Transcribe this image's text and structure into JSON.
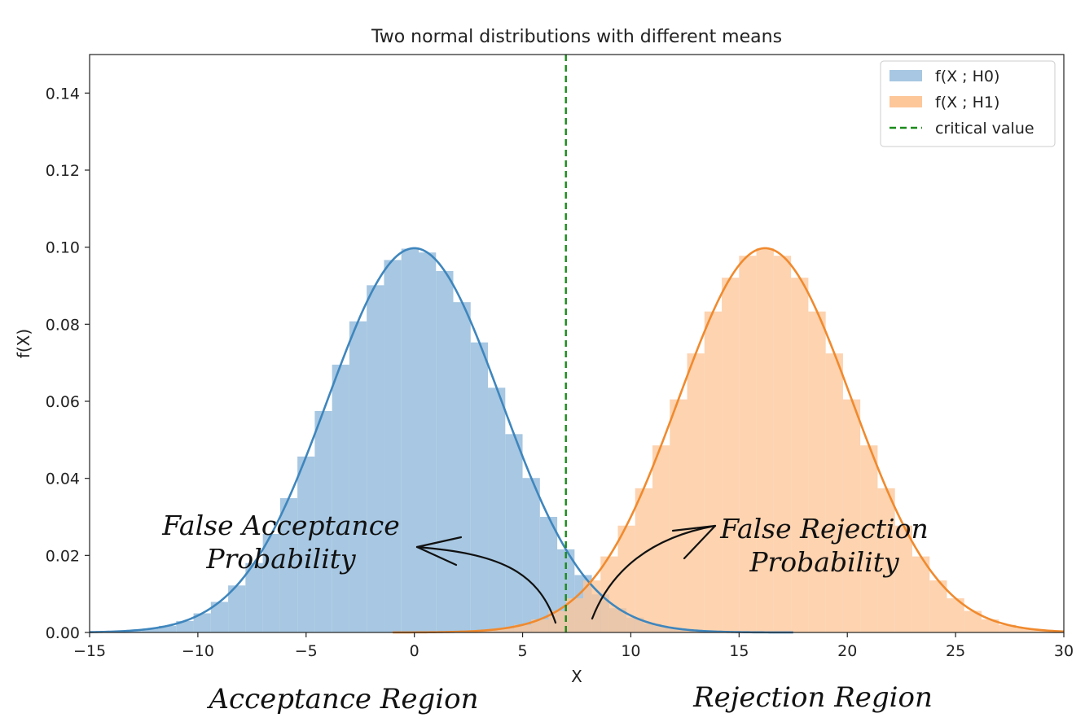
{
  "chart_data": {
    "type": "histogram",
    "title": "Two normal distributions with different means",
    "xlabel": "X",
    "ylabel": "f(X)",
    "xlim": [
      -15,
      30
    ],
    "ylim": [
      0,
      0.15
    ],
    "xticks": [
      -15,
      -10,
      -5,
      0,
      5,
      10,
      15,
      20,
      25,
      30
    ],
    "xtick_labels": [
      "−15",
      "−10",
      "−5",
      "0",
      "5",
      "10",
      "15",
      "20",
      "25",
      "30"
    ],
    "yticks": [
      0.0,
      0.02,
      0.04,
      0.06,
      0.08,
      0.1,
      0.12,
      0.14
    ],
    "ytick_labels": [
      "0.00",
      "0.02",
      "0.04",
      "0.06",
      "0.08",
      "0.10",
      "0.12",
      "0.14"
    ],
    "series": [
      {
        "name": "f(X ; H0)",
        "mean": 0,
        "sd": 4,
        "fill": "#a7c7e2",
        "line": "#3f86bd",
        "x_min": -15,
        "x_max": 17.5
      },
      {
        "name": "f(X ; H1)",
        "mean": 16.2,
        "sd": 4,
        "fill": "#fdc79a",
        "line": "#f08a2e",
        "x_min": -1,
        "x_max": 30
      }
    ],
    "critical_value": {
      "name": "critical value",
      "x": 7,
      "color": "#1a8a1a"
    },
    "legend": [
      "f(X ; H0)",
      "f(X ; H1)",
      "critical value"
    ],
    "legend_position": "top-right",
    "overlap_color": "#bf9f80"
  },
  "annotations": {
    "false_acceptance_line1": "False Acceptance",
    "false_acceptance_line2": "Probability",
    "false_rejection_line1": "False Rejection",
    "false_rejection_line2": "Probability",
    "acceptance_region": "Acceptance Region",
    "rejection_region": "Rejection Region"
  }
}
